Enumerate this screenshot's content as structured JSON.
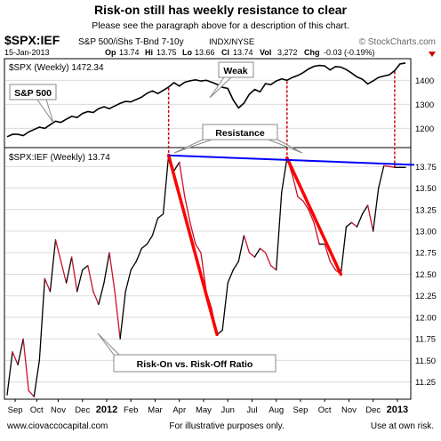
{
  "header": {
    "title": "Risk-on still has weekly resistance to clear",
    "subtitle": "Please see the paragraph above for a description of this chart.",
    "symbol": "$SPX:IEF",
    "symbol_desc": "S&P 500/iShs T-Bnd 7-10y",
    "exchange": "INDX/NYSE",
    "brand": "© StockCharts.com",
    "date": "15-Jan-2013",
    "quote": {
      "op": "13.74",
      "hi": "13.75",
      "lo": "13.66",
      "cl": "13.74",
      "vol": "3,272",
      "chg": "-0.03 (-0.19%)"
    },
    "quote_labels": {
      "op": "Op",
      "hi": "Hi",
      "lo": "Lo",
      "cl": "Cl",
      "vol": "Vol",
      "chg": "Chg"
    }
  },
  "footer": {
    "site": "www.ciovaccocapital.com",
    "note1": "For illustrative purposes only.",
    "note2": "Use at own risk."
  },
  "colors": {
    "price_line": "#000000",
    "ratio_line": "#000000",
    "ratio_down": "#c8102e",
    "trendline": "#ff0000",
    "resistance": "#0000ff",
    "marker": "#cc0000",
    "grid": "#dcdcdc"
  },
  "chart_data": [
    {
      "type": "line",
      "legend": "$SPX (Weekly) 1472.34",
      "ylim": [
        1120,
        1490
      ],
      "yticks": [
        1200,
        1300,
        1400
      ],
      "x": [
        0,
        1,
        2,
        3,
        4,
        5,
        6,
        7,
        8,
        9,
        10,
        11,
        12,
        13,
        14,
        15,
        16,
        17,
        18,
        19,
        20,
        21,
        22,
        23,
        24,
        25,
        26,
        27,
        28,
        29,
        30,
        31,
        32,
        33,
        34,
        35,
        36,
        37,
        38,
        39,
        40,
        41,
        42,
        43,
        44,
        45,
        46,
        47,
        48,
        49,
        50,
        51,
        52,
        53,
        54,
        55,
        56,
        57,
        58,
        59,
        60,
        61,
        62,
        63,
        64,
        65,
        66,
        67,
        68,
        69,
        70,
        71,
        72,
        73,
        74
      ],
      "values": [
        1165,
        1175,
        1175,
        1170,
        1185,
        1195,
        1205,
        1200,
        1215,
        1230,
        1225,
        1238,
        1250,
        1245,
        1262,
        1270,
        1266,
        1282,
        1290,
        1282,
        1293,
        1304,
        1312,
        1310,
        1320,
        1330,
        1346,
        1356,
        1345,
        1358,
        1372,
        1390,
        1376,
        1392,
        1398,
        1402,
        1397,
        1400,
        1392,
        1383,
        1371,
        1366,
        1318,
        1285,
        1305,
        1342,
        1362,
        1352,
        1386,
        1382,
        1397,
        1406,
        1400,
        1412,
        1420,
        1432,
        1447,
        1458,
        1462,
        1460,
        1443,
        1457,
        1455,
        1445,
        1430,
        1414,
        1404,
        1385,
        1398,
        1412,
        1418,
        1423,
        1440,
        1468,
        1472
      ],
      "annotations": [
        "S&P 500",
        "Weak"
      ]
    },
    {
      "type": "line",
      "legend": "$SPX:IEF (Weekly) 13.74",
      "ylim": [
        11.05,
        13.97
      ],
      "yticks": [
        11.25,
        11.5,
        11.75,
        12.0,
        12.25,
        12.5,
        12.75,
        13.0,
        13.25,
        13.5,
        13.75
      ],
      "x_tick_labels": [
        "Sep",
        "Oct",
        "Nov",
        "Dec",
        "2012",
        "Feb",
        "Mar",
        "Apr",
        "May",
        "Jun",
        "Jul",
        "Aug",
        "Sep",
        "Oct",
        "Nov",
        "Dec",
        "2013"
      ],
      "x": [
        0,
        1,
        2,
        3,
        4,
        5,
        6,
        7,
        8,
        9,
        10,
        11,
        12,
        13,
        14,
        15,
        16,
        17,
        18,
        19,
        20,
        21,
        22,
        23,
        24,
        25,
        26,
        27,
        28,
        29,
        30,
        31,
        32,
        33,
        34,
        35,
        36,
        37,
        38,
        39,
        40,
        41,
        42,
        43,
        44,
        45,
        46,
        47,
        48,
        49,
        50,
        51,
        52,
        53,
        54,
        55,
        56,
        57,
        58,
        59,
        60,
        61,
        62,
        63,
        64,
        65,
        66,
        67,
        68,
        69,
        70,
        71,
        72,
        73,
        74
      ],
      "values": [
        11.1,
        11.6,
        11.45,
        11.75,
        11.15,
        11.08,
        11.5,
        12.45,
        12.3,
        12.9,
        12.65,
        12.4,
        12.7,
        12.3,
        12.55,
        12.6,
        12.3,
        12.15,
        12.4,
        12.75,
        12.3,
        11.75,
        12.3,
        12.55,
        12.65,
        12.8,
        12.85,
        12.95,
        13.15,
        13.2,
        13.88,
        13.7,
        13.8,
        13.4,
        13.1,
        12.85,
        12.75,
        12.3,
        12.1,
        11.8,
        11.85,
        12.4,
        12.55,
        12.65,
        12.95,
        12.75,
        12.7,
        12.8,
        12.75,
        12.6,
        12.55,
        13.45,
        13.85,
        13.65,
        13.4,
        13.35,
        13.25,
        13.1,
        12.85,
        12.85,
        12.65,
        12.55,
        12.5,
        13.05,
        13.1,
        13.05,
        13.2,
        13.3,
        13.0,
        13.5,
        13.76,
        13.75,
        13.74,
        13.74,
        13.74
      ],
      "annotations": [
        "Resistance",
        "Risk-On vs. Risk-Off Ratio"
      ],
      "resistance_line": {
        "x": [
          30,
          74
        ],
        "y": [
          13.88,
          13.77
        ]
      },
      "trend_lines": [
        {
          "x": [
            30,
            39
          ],
          "y": [
            13.88,
            11.8
          ]
        },
        {
          "x": [
            52,
            62
          ],
          "y": [
            13.85,
            12.5
          ]
        }
      ],
      "vertical_markers": [
        30,
        52,
        72
      ]
    }
  ]
}
